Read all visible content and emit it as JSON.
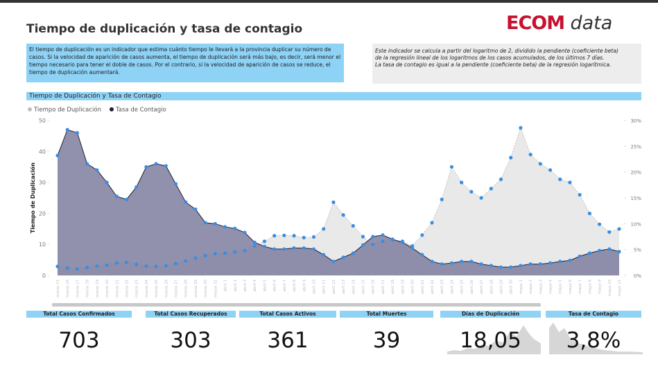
{
  "header": {
    "title": "Tiempo de duplicación y tasa de contagio",
    "logo_brand": "ECOM",
    "logo_suffix": "data"
  },
  "info_left": "El tiempo de duplicación es un indicador que estima cuánto tiempo le llevará a la provincia duplicar su número de casos. Si la velocidad de aparición de casos aumenta, el tiempo de duplicación será más bajo, es decir, será menor el tiempo necesario para tener el doble de casos. Por el contrario, si la velocidad de aparición de casos se reduce, el tiempo de duplicación aumentará.",
  "info_right": [
    "Este indicador se calcula a partir del logaritmo de 2, dividido la pendiente (coeficiente beta)",
    "de la regresión lineal de los logaritmos de los casos acumulados, de los últimos 7 días.",
    "La tasa de contagio es igual a la pendiente (coeficiente beta) de la regresión logarítmica."
  ],
  "chart_data": {
    "type": "area",
    "title": "Tiempo de Duplicación y Tasa de Contagio",
    "y_label": "Tiempo de Duplicación",
    "categories": [
      "marzo 15",
      "marzo 16",
      "marzo 17",
      "marzo 18",
      "marzo 19",
      "marzo 20",
      "marzo 21",
      "marzo 22",
      "marzo 23",
      "marzo 24",
      "marzo 25",
      "marzo 26",
      "marzo 27",
      "marzo 28",
      "marzo 29",
      "marzo 30",
      "marzo 31",
      "abril 1",
      "abril 2",
      "abril 3",
      "abril 4",
      "abril 5",
      "abril 6",
      "abril 7",
      "abril 8",
      "abril 9",
      "abril 10",
      "abril 11",
      "abril 12",
      "abril 13",
      "abril 14",
      "abril 15",
      "abril 16",
      "abril 17",
      "abril 18",
      "abril 19",
      "abril 20",
      "abril 21",
      "abril 22",
      "abril 23",
      "abril 24",
      "abril 25",
      "abril 26",
      "abril 27",
      "abril 28",
      "abril 29",
      "abril 30",
      "mayo 1",
      "mayo 2",
      "mayo 3",
      "mayo 4",
      "mayo 5",
      "mayo 6",
      "mayo 7",
      "mayo 8",
      "mayo 9",
      "mayo 10",
      "mayo 11"
    ],
    "series": [
      {
        "name": "Tiempo de Duplicación",
        "color": "#bdbdbd",
        "fill": "#e9e9e9",
        "axis": "y",
        "values": [
          2.9,
          2.4,
          2.1,
          2.6,
          3,
          3.3,
          4,
          4.2,
          3.6,
          3,
          2.9,
          3.1,
          3.8,
          4.7,
          5.6,
          6.4,
          7,
          7.2,
          7.6,
          8,
          9.5,
          11,
          12.8,
          12.9,
          12.8,
          12.2,
          12.4,
          15,
          23.6,
          19.5,
          16,
          12.5,
          10,
          11,
          11.5,
          11,
          9.5,
          13,
          17,
          24.5,
          35,
          30,
          27,
          25,
          28,
          31,
          38,
          47.6,
          39,
          36,
          34,
          31,
          30,
          26,
          20,
          16.5,
          14,
          15
        ]
      },
      {
        "name": "Tasa de Contagio",
        "color": "#1c1c3c",
        "fill": "#7e7ea0",
        "axis": "y2",
        "values": [
          23.2,
          28.2,
          27.6,
          21.6,
          20.4,
          18,
          15.3,
          14.7,
          17.1,
          21,
          21.6,
          21.2,
          17.7,
          14.2,
          12.8,
          10.2,
          10,
          9.4,
          9.1,
          8.3,
          6.4,
          5.6,
          5.1,
          5.1,
          5.3,
          5.3,
          5.1,
          4,
          2.7,
          3.5,
          4.3,
          5.9,
          7.5,
          7.8,
          7,
          6.4,
          5.3,
          4,
          2.7,
          2.2,
          2.4,
          2.7,
          2.7,
          2.2,
          1.9,
          1.6,
          1.6,
          1.9,
          2.2,
          2.2,
          2.4,
          2.7,
          2.9,
          3.7,
          4.3,
          4.8,
          5.1,
          4.6
        ]
      }
    ],
    "marker_color": "#3a8ee0",
    "ylim": [
      0,
      50
    ],
    "yticks": [
      0,
      10,
      20,
      30,
      40,
      50
    ],
    "y2lim": [
      0,
      30
    ],
    "y2ticks": [
      {
        "value": 0,
        "label": "0%"
      },
      {
        "value": 5,
        "label": "5%"
      },
      {
        "value": 10,
        "label": "10%"
      },
      {
        "value": 15,
        "label": "15%"
      },
      {
        "value": 20,
        "label": "20%"
      },
      {
        "value": 25,
        "label": "25%"
      },
      {
        "value": 30,
        "label": "30%"
      }
    ],
    "legend": "top-left"
  },
  "kpis": [
    {
      "label": "Total Casos Confirmados",
      "value": "703"
    },
    {
      "label": "Total Casos Recuperados",
      "value": "303"
    },
    {
      "label": "Total Casos Activos",
      "value": "361"
    },
    {
      "label": "Total Muertes",
      "value": "39"
    },
    {
      "label": "Días de Duplicación",
      "value": "18,05"
    },
    {
      "label": "Tasa de Contagio",
      "value": "3,8%"
    }
  ]
}
